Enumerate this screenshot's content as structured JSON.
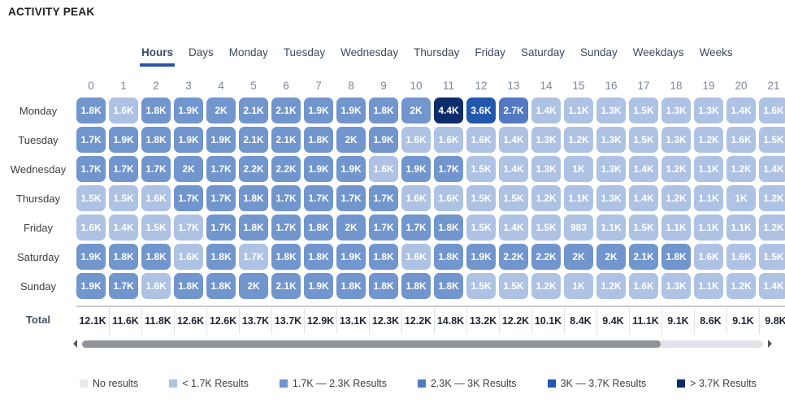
{
  "title": "ACTIVITY PEAK",
  "colors": {
    "tab_active_underline": "#2b55a8",
    "palette": {
      "0": "#e9ebee",
      "1": "#aec2e4",
      "2": "#7195cd",
      "3": "#5379c2",
      "4": "#2158ae",
      "5": "#0d2c6b"
    }
  },
  "tabs": {
    "items": [
      {
        "label": "Hours",
        "active": true
      },
      {
        "label": "Days",
        "active": false
      },
      {
        "label": "Monday",
        "active": false
      },
      {
        "label": "Tuesday",
        "active": false
      },
      {
        "label": "Wednesday",
        "active": false
      },
      {
        "label": "Thursday",
        "active": false
      },
      {
        "label": "Friday",
        "active": false
      },
      {
        "label": "Saturday",
        "active": false
      },
      {
        "label": "Sunday",
        "active": false
      },
      {
        "label": "Weekdays",
        "active": false
      },
      {
        "label": "Weeks",
        "active": false
      }
    ]
  },
  "chart_data": {
    "type": "heatmap",
    "title": "ACTIVITY PEAK",
    "columns": [
      "0",
      "1",
      "2",
      "3",
      "4",
      "5",
      "6",
      "7",
      "8",
      "9",
      "10",
      "11",
      "12",
      "13",
      "14",
      "15",
      "16",
      "17",
      "18",
      "19",
      "20",
      "21"
    ],
    "level_bands": [
      "No results",
      "< 1.7K",
      "1.7K — 2.3K",
      "2.3K — 3K",
      "3K — 3.7K",
      "> 3.7K"
    ],
    "rows": [
      {
        "label": "Monday",
        "values": [
          "1.8K",
          "1.6K",
          "1.8K",
          "1.9K",
          "2K",
          "2.1K",
          "2.1K",
          "1.9K",
          "1.9K",
          "1.8K",
          "2K",
          "4.4K",
          "3.6K",
          "2.7K",
          "1.4K",
          "1.1K",
          "1.3K",
          "1.5K",
          "1.3K",
          "1.3K",
          "1.4K",
          "1.6K"
        ],
        "levels": [
          2,
          1,
          2,
          2,
          2,
          2,
          2,
          2,
          2,
          2,
          2,
          5,
          4,
          3,
          1,
          1,
          1,
          1,
          1,
          1,
          1,
          1
        ]
      },
      {
        "label": "Tuesday",
        "values": [
          "1.7K",
          "1.9K",
          "1.8K",
          "1.9K",
          "1.9K",
          "2.1K",
          "2.1K",
          "1.8K",
          "2K",
          "1.9K",
          "1.6K",
          "1.6K",
          "1.6K",
          "1.4K",
          "1.3K",
          "1.2K",
          "1.3K",
          "1.5K",
          "1.3K",
          "1.2K",
          "1.6K",
          "1.5K"
        ],
        "levels": [
          2,
          2,
          2,
          2,
          2,
          2,
          2,
          2,
          2,
          2,
          1,
          1,
          1,
          1,
          1,
          1,
          1,
          1,
          1,
          1,
          1,
          1
        ]
      },
      {
        "label": "Wednesday",
        "values": [
          "1.7K",
          "1.7K",
          "1.7K",
          "2K",
          "1.7K",
          "2.2K",
          "2.2K",
          "1.9K",
          "1.9K",
          "1.6K",
          "1.9K",
          "1.7K",
          "1.5K",
          "1.4K",
          "1.3K",
          "1K",
          "1.3K",
          "1.4K",
          "1.2K",
          "1.1K",
          "1.2K",
          "1.4K"
        ],
        "levels": [
          2,
          2,
          2,
          2,
          2,
          2,
          2,
          2,
          2,
          1,
          2,
          2,
          1,
          1,
          1,
          1,
          1,
          1,
          1,
          1,
          1,
          1
        ]
      },
      {
        "label": "Thursday",
        "values": [
          "1.5K",
          "1.5K",
          "1.6K",
          "1.7K",
          "1.7K",
          "1.8K",
          "1.7K",
          "1.7K",
          "1.7K",
          "1.7K",
          "1.6K",
          "1.6K",
          "1.5K",
          "1.5K",
          "1.2K",
          "1.1K",
          "1.3K",
          "1.4K",
          "1.2K",
          "1.1K",
          "1K",
          "1.2K"
        ],
        "levels": [
          1,
          1,
          1,
          2,
          2,
          2,
          2,
          2,
          2,
          2,
          1,
          1,
          1,
          1,
          1,
          1,
          1,
          1,
          1,
          1,
          1,
          1
        ]
      },
      {
        "label": "Friday",
        "values": [
          "1.6K",
          "1.4K",
          "1.5K",
          "1.7K",
          "1.7K",
          "1.8K",
          "1.7K",
          "1.8K",
          "2K",
          "1.7K",
          "1.7K",
          "1.8K",
          "1.5K",
          "1.4K",
          "1.5K",
          "983",
          "1.1K",
          "1.5K",
          "1.1K",
          "1.1K",
          "1.1K",
          "1.2K"
        ],
        "levels": [
          1,
          1,
          1,
          1,
          2,
          2,
          2,
          2,
          2,
          2,
          2,
          2,
          1,
          1,
          1,
          1,
          1,
          1,
          1,
          1,
          1,
          1
        ]
      },
      {
        "label": "Saturday",
        "values": [
          "1.9K",
          "1.8K",
          "1.8K",
          "1.6K",
          "1.8K",
          "1.7K",
          "1.8K",
          "1.8K",
          "1.9K",
          "1.8K",
          "1.6K",
          "1.8K",
          "1.9K",
          "2.2K",
          "2.2K",
          "2K",
          "2K",
          "2.1K",
          "1.8K",
          "1.6K",
          "1.6K",
          "1.5K"
        ],
        "levels": [
          2,
          2,
          2,
          1,
          2,
          1,
          2,
          2,
          2,
          2,
          1,
          2,
          2,
          2,
          2,
          2,
          2,
          2,
          2,
          1,
          1,
          1
        ]
      },
      {
        "label": "Sunday",
        "values": [
          "1.9K",
          "1.7K",
          "1.6K",
          "1.8K",
          "1.8K",
          "2K",
          "2.1K",
          "1.9K",
          "1.8K",
          "1.8K",
          "1.8K",
          "1.8K",
          "1.5K",
          "1.5K",
          "1.2K",
          "1K",
          "1.2K",
          "1.6K",
          "1.3K",
          "1.1K",
          "1.2K",
          "1.4K"
        ],
        "levels": [
          2,
          2,
          1,
          2,
          2,
          2,
          2,
          2,
          2,
          2,
          2,
          2,
          1,
          1,
          1,
          1,
          1,
          1,
          1,
          1,
          1,
          1
        ]
      }
    ],
    "totals": {
      "label": "Total",
      "values": [
        "12.1K",
        "11.6K",
        "11.8K",
        "12.6K",
        "12.6K",
        "13.7K",
        "13.7K",
        "12.9K",
        "13.1K",
        "12.3K",
        "12.2K",
        "14.8K",
        "13.2K",
        "12.2K",
        "10.1K",
        "8.4K",
        "9.4K",
        "11.1K",
        "9.1K",
        "8.6K",
        "9.1K",
        "9.8K"
      ]
    },
    "legend_position": "bottom"
  },
  "legend": {
    "items": [
      {
        "label": "No results",
        "level": 0,
        "color": "#e9ebee"
      },
      {
        "label": "< 1.7K Results",
        "level": 1,
        "color": "#aec2e4"
      },
      {
        "label": "1.7K — 2.3K Results",
        "level": 2,
        "color": "#7195cd"
      },
      {
        "label": "2.3K — 3K Results",
        "level": 3,
        "color": "#5379c2"
      },
      {
        "label": "3K — 3.7K Results",
        "level": 4,
        "color": "#2158ae"
      },
      {
        "label": "> 3.7K Results",
        "level": 5,
        "color": "#0d2c6b"
      }
    ]
  }
}
